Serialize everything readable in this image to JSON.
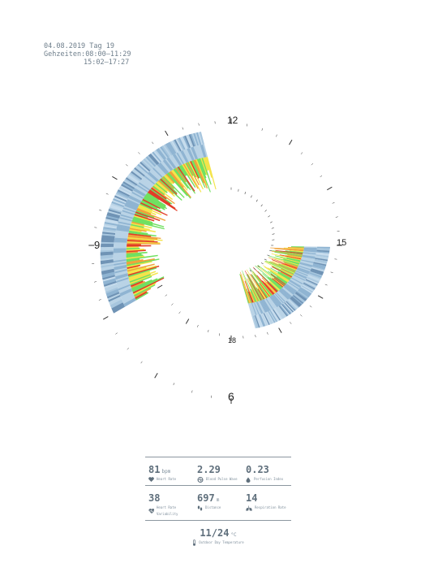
{
  "header": {
    "date_line": "04.08.2019 Tag 19",
    "times_label": "Gehzeiten:",
    "times": [
      "08:00–11:29",
      "15:02–17:27"
    ]
  },
  "clock_labels": {
    "l12": "12",
    "l15": "15",
    "l18": "18",
    "l9": "9",
    "l6": "6"
  },
  "stats": {
    "heart_rate": {
      "value": "81",
      "unit": "bpm",
      "label": "Heart Rate",
      "icon": "heart-icon"
    },
    "blood_pulse_wave": {
      "value": "2.29",
      "unit": "",
      "label": "Blood Pulse Wave",
      "icon": "pulse-icon"
    },
    "perfusion_index": {
      "value": "0.23",
      "unit": "",
      "label": "Perfusion Index",
      "icon": "drop-icon"
    },
    "heart_rate_variability": {
      "value": "38",
      "unit": "",
      "label": "Heart Rate Variability",
      "icon": "heart-wave-icon"
    },
    "distance": {
      "value": "697",
      "unit": "m",
      "label": "Distance",
      "icon": "footsteps-icon"
    },
    "respiration_rate": {
      "value": "14",
      "unit": "",
      "label": "Respiration Rate",
      "icon": "lungs-icon"
    },
    "temperature": {
      "value": "11/24",
      "unit": "°C",
      "label": "Outdoor Day Temperature",
      "icon": "thermometer-icon"
    }
  },
  "colors": {
    "blue_light": "#b9d3e6",
    "blue_mid": "#8fb4d2",
    "blue_dark": "#6f93b5",
    "green": "#6fe060",
    "yellow": "#f4e44a",
    "orange": "#f0a23a",
    "red": "#e23b26",
    "text": "#6f7f8c"
  },
  "chart_data": {
    "type": "radial-bar",
    "walking_segments": [
      {
        "start_hour": 8.0,
        "end_hour": 11.48
      },
      {
        "start_hour": 15.03,
        "end_hour": 17.45
      }
    ],
    "spiral_hours": [
      6,
      20
    ],
    "level_scale": [
      "green",
      "yellow",
      "orange",
      "red"
    ]
  }
}
